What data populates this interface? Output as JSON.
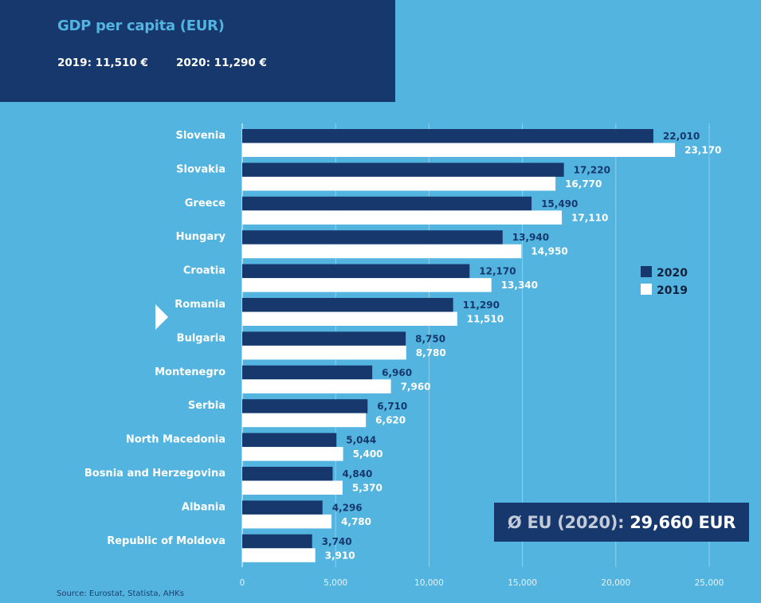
{
  "header": {
    "title": "GDP per capita (EUR)",
    "summary_2019": "2019: 11,510 €",
    "summary_2020": "2020: 11,290 €"
  },
  "eu_average": {
    "prefix": "Ø EU (2020): ",
    "value": "29,660 EUR"
  },
  "source": "Source: Eurostat, Statista, AHKs",
  "colors": {
    "background": "#52b4df",
    "series_2020": "#17386d",
    "series_2019": "#ffffff",
    "label_2020": "#17386d",
    "label_2019": "#ffffff",
    "gridline": "#8fd0ee"
  },
  "chart_data": {
    "type": "bar",
    "orientation": "horizontal",
    "title": "GDP per capita (EUR)",
    "xlabel": "",
    "ylabel": "",
    "xlim": [
      0,
      25000
    ],
    "xticks": [
      0,
      5000,
      10000,
      15000,
      20000,
      25000
    ],
    "xtick_labels": [
      "0",
      "5,000",
      "10,000",
      "15,000",
      "20,000",
      "25,000"
    ],
    "grid": true,
    "legend_position": "right",
    "highlighted_category": "Romania",
    "categories": [
      "Slovenia",
      "Slovakia",
      "Greece",
      "Hungary",
      "Croatia",
      "Romania",
      "Bulgaria",
      "Montenegro",
      "Serbia",
      "North Macedonia",
      "Bosnia and Herzegovina",
      "Albania",
      "Republic of Moldova"
    ],
    "series": [
      {
        "name": "2020",
        "values": [
          22010,
          17220,
          15490,
          13940,
          12170,
          11290,
          8750,
          6960,
          6710,
          5044,
          4840,
          4296,
          3740
        ],
        "labels": [
          "22,010",
          "17,220",
          "15,490",
          "13,940",
          "12,170",
          "11,290",
          "8,750",
          "6,960",
          "6,710",
          "5,044",
          "4,840",
          "4,296",
          "3,740"
        ]
      },
      {
        "name": "2019",
        "values": [
          23170,
          16770,
          17110,
          14950,
          13340,
          11510,
          8780,
          7960,
          6620,
          5400,
          5370,
          4780,
          3910
        ],
        "labels": [
          "23,170",
          "16,770",
          "17,110",
          "14,950",
          "13,340",
          "11,510",
          "8,780",
          "7,960",
          "6,620",
          "5,400",
          "5,370",
          "4,780",
          "3,910"
        ]
      }
    ]
  }
}
